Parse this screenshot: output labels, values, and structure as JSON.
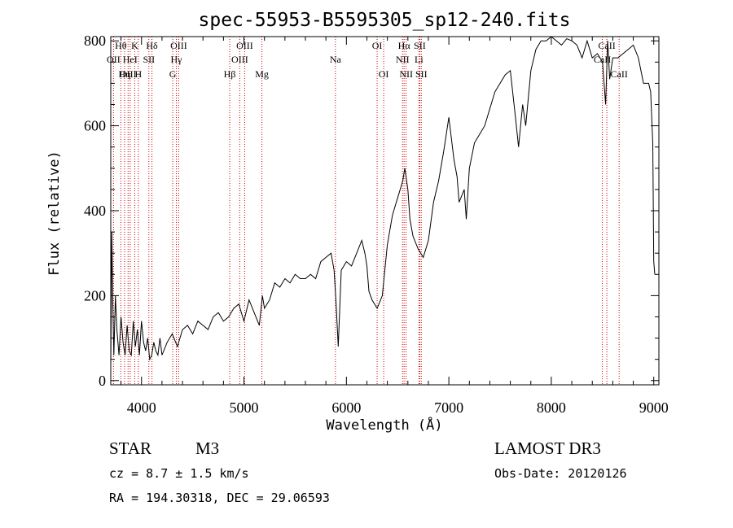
{
  "chart_data": {
    "type": "line",
    "title": "spec-55953-B5595305_sp12-240.fits",
    "xlabel": "Wavelength (Å)",
    "ylabel": "Flux (relative)",
    "xlim": [
      3700,
      9050
    ],
    "ylim": [
      -10,
      810
    ],
    "x_ticks": [
      4000,
      5000,
      6000,
      7000,
      8000,
      9000
    ],
    "x_tick_labels": [
      "4000",
      "5000",
      "6000",
      "7000",
      "8000",
      "9000"
    ],
    "y_ticks": [
      0,
      200,
      400,
      600,
      800
    ],
    "y_tick_labels": [
      "0",
      "200",
      "400",
      "600",
      "800"
    ],
    "series": [
      {
        "name": "flux",
        "x": [
          3700,
          3710,
          3720,
          3730,
          3745,
          3760,
          3780,
          3800,
          3820,
          3840,
          3860,
          3880,
          3900,
          3920,
          3940,
          3960,
          3980,
          4000,
          4020,
          4040,
          4060,
          4080,
          4100,
          4120,
          4140,
          4160,
          4180,
          4200,
          4250,
          4300,
          4350,
          4400,
          4450,
          4500,
          4550,
          4600,
          4650,
          4700,
          4750,
          4800,
          4850,
          4900,
          4950,
          5000,
          5050,
          5100,
          5150,
          5180,
          5200,
          5250,
          5300,
          5350,
          5400,
          5450,
          5500,
          5550,
          5600,
          5650,
          5700,
          5750,
          5800,
          5850,
          5880,
          5900,
          5910,
          5920,
          5950,
          6000,
          6050,
          6100,
          6150,
          6180,
          6200,
          6220,
          6250,
          6300,
          6350,
          6400,
          6450,
          6500,
          6550,
          6570,
          6600,
          6620,
          6650,
          6700,
          6750,
          6800,
          6850,
          6900,
          6950,
          7000,
          7050,
          7080,
          7100,
          7150,
          7170,
          7200,
          7250,
          7300,
          7350,
          7400,
          7450,
          7500,
          7550,
          7600,
          7650,
          7680,
          7700,
          7720,
          7750,
          7800,
          7850,
          7900,
          7950,
          8000,
          8050,
          8100,
          8150,
          8200,
          8250,
          8300,
          8350,
          8400,
          8450,
          8500,
          8530,
          8550,
          8570,
          8600,
          8650,
          8700,
          8750,
          8800,
          8850,
          8900,
          8950,
          8970,
          8990,
          9000,
          9010
        ],
        "values": [
          30,
          350,
          180,
          60,
          200,
          120,
          60,
          150,
          90,
          60,
          130,
          70,
          60,
          140,
          80,
          120,
          60,
          140,
          90,
          70,
          100,
          50,
          60,
          90,
          70,
          60,
          100,
          60,
          90,
          110,
          80,
          120,
          130,
          110,
          140,
          130,
          120,
          150,
          160,
          140,
          150,
          170,
          180,
          140,
          190,
          160,
          130,
          200,
          170,
          190,
          230,
          220,
          240,
          230,
          250,
          240,
          240,
          250,
          240,
          280,
          290,
          300,
          260,
          180,
          130,
          80,
          260,
          280,
          270,
          300,
          330,
          300,
          270,
          210,
          190,
          170,
          200,
          320,
          390,
          430,
          470,
          500,
          450,
          380,
          340,
          310,
          290,
          330,
          420,
          470,
          540,
          620,
          520,
          480,
          420,
          450,
          380,
          500,
          560,
          580,
          600,
          640,
          680,
          700,
          720,
          730,
          620,
          550,
          600,
          650,
          600,
          730,
          780,
          800,
          800,
          820,
          800,
          790,
          805,
          800,
          790,
          760,
          800,
          760,
          770,
          750,
          650,
          800,
          710,
          760,
          760,
          770,
          780,
          790,
          760,
          700,
          700,
          680,
          560,
          280,
          250
        ]
      }
    ],
    "lines": [
      {
        "name": "Hθ",
        "wave": 3798,
        "row": 1
      },
      {
        "name": "OII",
        "wave": 3727,
        "row": 2
      },
      {
        "name": "OIII",
        "wave": 3869,
        "row": 3
      },
      {
        "name": "Hη",
        "wave": 3835,
        "row": 3
      },
      {
        "name": "K",
        "wave": 3934,
        "row": 1
      },
      {
        "name": "HeI",
        "wave": 3889,
        "row": 2
      },
      {
        "name": "SII",
        "wave": 4072,
        "row": 2
      },
      {
        "name": "H",
        "wave": 3969,
        "row": 3
      },
      {
        "name": "Hδ",
        "wave": 4102,
        "row": 1
      },
      {
        "name": "OIII",
        "wave": 4363,
        "row": 1
      },
      {
        "name": "Hγ",
        "wave": 4340,
        "row": 2
      },
      {
        "name": "G",
        "wave": 4305,
        "row": 3
      },
      {
        "name": "Hβ",
        "wave": 4861,
        "row": 3
      },
      {
        "name": "OIII",
        "wave": 5007,
        "row": 1
      },
      {
        "name": "OIII",
        "wave": 4959,
        "row": 2
      },
      {
        "name": "Mg",
        "wave": 5175,
        "row": 3
      },
      {
        "name": "Na",
        "wave": 5893,
        "row": 2
      },
      {
        "name": "OI",
        "wave": 6300,
        "row": 1
      },
      {
        "name": "OI",
        "wave": 6364,
        "row": 3
      },
      {
        "name": "Hα",
        "wave": 6563,
        "row": 1
      },
      {
        "name": "SII",
        "wave": 6716,
        "row": 1
      },
      {
        "name": "NII",
        "wave": 6548,
        "row": 2
      },
      {
        "name": "Li",
        "wave": 6708,
        "row": 2
      },
      {
        "name": "NII",
        "wave": 6583,
        "row": 3
      },
      {
        "name": "SII",
        "wave": 6731,
        "row": 3
      },
      {
        "name": "CaII",
        "wave": 8542,
        "row": 1
      },
      {
        "name": "CaII",
        "wave": 8498,
        "row": 2
      },
      {
        "name": "CaII",
        "wave": 8662,
        "row": 3
      }
    ],
    "line_color": "#cc0000",
    "series_color": "#000000"
  },
  "info": {
    "class_label": "STAR",
    "subclass_label": "M3",
    "survey_label": "LAMOST DR3",
    "cz_text": "cz = 8.7 ± 1.5 km/s",
    "obs_date_text": "Obs-Date: 20120126",
    "coords_text": "RA = 194.30318, DEC =  29.06593"
  }
}
